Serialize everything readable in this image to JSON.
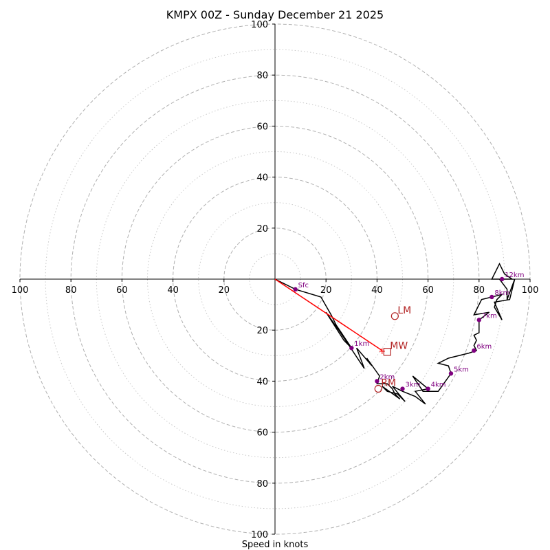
{
  "chart_data": {
    "type": "hodograph",
    "title": "KMPX 00Z - Sunday December 21 2025",
    "xlabel": "Speed in knots",
    "axis_range": [
      -100,
      100
    ],
    "ring_major": [
      20,
      40,
      60,
      80,
      100
    ],
    "ring_minor": [
      10,
      30,
      50,
      70,
      90
    ],
    "x_tick_labels": [
      "100",
      "80",
      "60",
      "40",
      "20",
      "20",
      "40",
      "60",
      "80",
      "100"
    ],
    "x_tick_values": [
      -100,
      -80,
      -60,
      -40,
      -20,
      20,
      40,
      60,
      80,
      100
    ],
    "y_tick_labels": [
      "100",
      "80",
      "60",
      "40",
      "20",
      "20",
      "40",
      "60",
      "80",
      "100"
    ],
    "y_tick_values": [
      100,
      80,
      60,
      40,
      20,
      -20,
      -40,
      -60,
      -80,
      -100
    ],
    "hodograph_trace": [
      [
        0,
        0
      ],
      [
        8,
        -4
      ],
      [
        18,
        -7
      ],
      [
        22,
        -14
      ],
      [
        24,
        -18
      ],
      [
        26,
        -21
      ],
      [
        28,
        -24
      ],
      [
        30,
        -27
      ],
      [
        27,
        -24
      ],
      [
        20,
        -13
      ],
      [
        25,
        -20
      ],
      [
        35,
        -35
      ],
      [
        32,
        -27
      ],
      [
        38,
        -34
      ],
      [
        36,
        -31
      ],
      [
        41,
        -38
      ],
      [
        40,
        -41
      ],
      [
        44,
        -41
      ],
      [
        46,
        -43
      ],
      [
        47,
        -45
      ],
      [
        49,
        -47
      ],
      [
        42,
        -42
      ],
      [
        44,
        -44
      ],
      [
        48,
        -45
      ],
      [
        51,
        -48
      ],
      [
        46,
        -42
      ],
      [
        50,
        -44
      ],
      [
        55,
        -46
      ],
      [
        59,
        -49
      ],
      [
        55,
        -44
      ],
      [
        60,
        -43
      ],
      [
        54,
        -38
      ],
      [
        58,
        -44
      ],
      [
        64,
        -44
      ],
      [
        69,
        -37
      ],
      [
        68,
        -34
      ],
      [
        64,
        -33
      ],
      [
        68,
        -31
      ],
      [
        76,
        -29
      ],
      [
        79,
        -28
      ],
      [
        78,
        -26
      ],
      [
        79,
        -24
      ],
      [
        78,
        -22
      ],
      [
        80,
        -21
      ],
      [
        80,
        -16
      ],
      [
        84,
        -13
      ],
      [
        78,
        -14
      ],
      [
        81,
        -8
      ],
      [
        85,
        -7
      ],
      [
        89,
        -6
      ],
      [
        87,
        -8
      ],
      [
        86,
        -11
      ],
      [
        89,
        -16
      ],
      [
        86,
        -9
      ],
      [
        92,
        -8
      ],
      [
        94,
        0
      ],
      [
        91,
        -8
      ],
      [
        91,
        -4
      ],
      [
        88,
        0
      ],
      [
        85,
        0
      ],
      [
        88,
        6
      ],
      [
        90,
        2
      ],
      [
        93,
        0
      ],
      [
        89,
        0
      ]
    ],
    "height_markers": [
      {
        "label": "Sfc",
        "u": 8,
        "v": -4
      },
      {
        "label": "1km",
        "u": 30,
        "v": -27
      },
      {
        "label": "2km",
        "u": 40,
        "v": -40
      },
      {
        "label": "3km",
        "u": 50,
        "v": -43
      },
      {
        "label": "4km",
        "u": 60,
        "v": -43
      },
      {
        "label": "5km",
        "u": 69,
        "v": -37
      },
      {
        "label": "6km",
        "u": 78,
        "v": -28
      },
      {
        "label": "7km",
        "u": 80,
        "v": -16
      },
      {
        "label": "8km",
        "u": 85,
        "v": -7
      },
      {
        "label": "12km",
        "u": 89,
        "v": 0
      }
    ],
    "storm_motion": [
      {
        "label": "LM",
        "symbol": "circle",
        "u": 47,
        "v": -14.5
      },
      {
        "label": "MW",
        "symbol": "square",
        "u": 44,
        "v": -28.5
      },
      {
        "label": "RM",
        "symbol": "circle",
        "u": 40.5,
        "v": -43
      }
    ],
    "shear_vector": {
      "from": [
        0,
        0
      ],
      "to": [
        42,
        -28
      ]
    },
    "colors": {
      "trace": "#000000",
      "markers": "#800080",
      "storm_motion": "#b22222",
      "shear": "#ff0000",
      "rings": "#b0b0b0"
    }
  }
}
